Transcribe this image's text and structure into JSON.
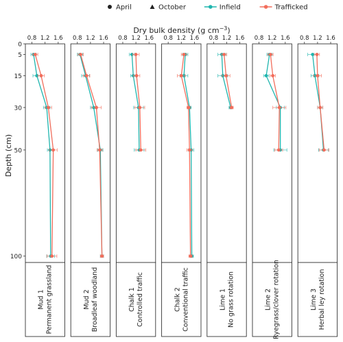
{
  "legend": {
    "shape_items": [
      {
        "label": "April",
        "shape": "circle"
      },
      {
        "label": "October",
        "shape": "triangle"
      }
    ],
    "color_items": [
      {
        "label": "Infield",
        "color": "#1fb5ae"
      },
      {
        "label": "Trafficked",
        "color": "#f26d5b"
      }
    ]
  },
  "chart_data": {
    "type": "line",
    "xlabel_main": "Dry bulk density (g cm",
    "xlabel_sup": "−3",
    "xlabel_close": ")",
    "ylabel": "Depth (cm)",
    "xlim": [
      0.6,
      1.8
    ],
    "ylim": [
      0,
      103
    ],
    "xticks": [
      "0.8",
      "1.2",
      "1.6"
    ],
    "xtick_values": [
      0.8,
      1.2,
      1.6
    ],
    "yticks": [
      "0",
      "5",
      "15",
      "30",
      "50",
      "100"
    ],
    "ytick_values": [
      0,
      5,
      15,
      30,
      50,
      100
    ],
    "colors": {
      "Infield": "#1fb5ae",
      "Trafficked": "#f26d5b"
    },
    "panels": [
      {
        "line1": "Mud 1",
        "line2": "Permanent grassland",
        "series": [
          {
            "name": "Infield",
            "depths": [
              5,
              15,
              30,
              50,
              100
            ],
            "values": [
              0.85,
              0.95,
              1.25,
              1.35,
              1.37
            ],
            "errors": [
              0.08,
              0.12,
              0.1,
              0.08,
              0.12
            ]
          },
          {
            "name": "Trafficked",
            "depths": [
              5,
              15,
              30,
              50,
              100
            ],
            "values": [
              0.9,
              1.08,
              1.3,
              1.45,
              1.41
            ],
            "errors": [
              0.08,
              0.1,
              0.1,
              0.12,
              0.15
            ]
          }
        ]
      },
      {
        "line1": "Mud 2",
        "line2": "Broadleaf woodland",
        "series": [
          {
            "name": "Infield",
            "depths": [
              5,
              15,
              30,
              50,
              100
            ],
            "values": [
              0.88,
              1.05,
              1.3,
              1.5,
              1.55
            ],
            "errors": [
              0.08,
              0.12,
              0.1,
              0.08,
              0.05
            ]
          },
          {
            "name": "Trafficked",
            "depths": [
              5,
              15,
              30,
              50,
              100
            ],
            "values": [
              0.9,
              1.08,
              1.38,
              1.48,
              1.55
            ],
            "errors": [
              0.08,
              0.1,
              0.15,
              0.08,
              0.05
            ]
          }
        ]
      },
      {
        "line1": "Chalk 1",
        "line2": "Controlled traffic",
        "series": [
          {
            "name": "Infield",
            "depths": [
              5,
              15,
              30,
              50
            ],
            "values": [
              1.08,
              1.12,
              1.28,
              1.3
            ],
            "errors": [
              0.08,
              0.08,
              0.15,
              0.15
            ]
          },
          {
            "name": "Trafficked",
            "depths": [
              5,
              15,
              30,
              50
            ],
            "values": [
              1.2,
              1.22,
              1.32,
              1.35
            ],
            "errors": [
              0.1,
              0.1,
              0.15,
              0.15
            ]
          }
        ]
      },
      {
        "line1": "Chalk 2",
        "line2": "Conventional traffic",
        "series": [
          {
            "name": "Infield",
            "depths": [
              5,
              15,
              30,
              50,
              100
            ],
            "values": [
              1.32,
              1.28,
              1.45,
              1.5,
              1.52
            ],
            "errors": [
              0.08,
              0.12,
              0.05,
              0.08,
              0.05
            ]
          },
          {
            "name": "Trafficked",
            "depths": [
              5,
              15,
              30,
              50,
              100
            ],
            "values": [
              1.28,
              1.2,
              1.42,
              1.45,
              1.48
            ],
            "errors": [
              0.08,
              0.12,
              0.05,
              0.08,
              0.05
            ]
          }
        ]
      },
      {
        "line1": "Lime 1",
        "line2": "No grass rotation",
        "series": [
          {
            "name": "Infield",
            "depths": [
              5,
              15,
              30
            ],
            "values": [
              1.05,
              1.08,
              1.32
            ],
            "errors": [
              0.12,
              0.15,
              0.05
            ]
          },
          {
            "name": "Trafficked",
            "depths": [
              5,
              15,
              30
            ],
            "values": [
              1.12,
              1.18,
              1.35
            ],
            "errors": [
              0.08,
              0.12,
              0.05
            ]
          }
        ]
      },
      {
        "line1": "Lime 2",
        "line2": "Ryegrass/clover rotation",
        "series": [
          {
            "name": "Infield",
            "depths": [
              5,
              15,
              30,
              50
            ],
            "values": [
              1.12,
              1.02,
              1.45,
              1.45
            ],
            "errors": [
              0.08,
              0.08,
              0.12,
              0.2
            ]
          },
          {
            "name": "Trafficked",
            "depths": [
              5,
              15,
              30,
              50
            ],
            "values": [
              1.15,
              1.22,
              1.42,
              1.4
            ],
            "errors": [
              0.08,
              0.08,
              0.2,
              0.12
            ]
          }
        ]
      },
      {
        "line1": "Lime 3",
        "line2": "Herbal ley rotation",
        "series": [
          {
            "name": "Infield",
            "depths": [
              5,
              15,
              30,
              50
            ],
            "values": [
              1.05,
              1.12,
              1.28,
              1.38
            ],
            "errors": [
              0.15,
              0.12,
              0.08,
              0.15
            ]
          },
          {
            "name": "Trafficked",
            "depths": [
              5,
              15,
              30,
              50
            ],
            "values": [
              1.18,
              1.2,
              1.28,
              1.4
            ],
            "errors": [
              0.08,
              0.12,
              0.08,
              0.15
            ]
          }
        ]
      }
    ]
  }
}
